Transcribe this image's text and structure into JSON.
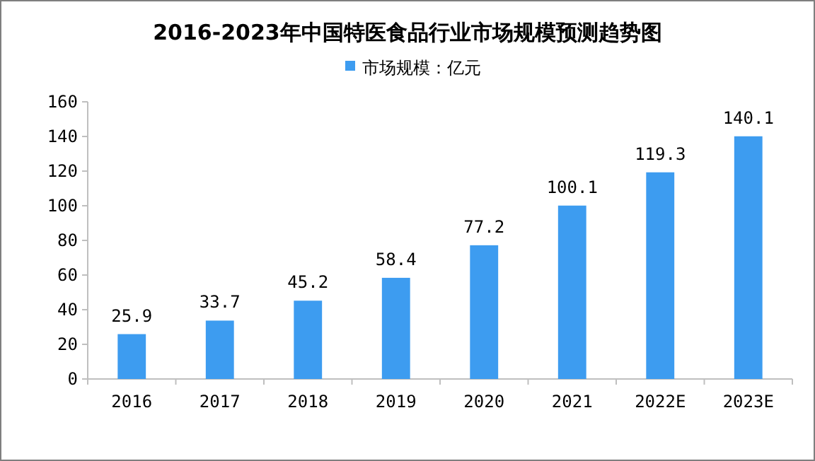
{
  "chart_data": {
    "type": "bar",
    "title": "2016-2023年中国特医食品行业市场规模预测趋势图",
    "categories": [
      "2016",
      "2017",
      "2018",
      "2019",
      "2020",
      "2021",
      "2022E",
      "2023E"
    ],
    "series": [
      {
        "name": "市场规模：亿元",
        "color": "#3d9cf0",
        "values": [
          25.9,
          33.7,
          45.2,
          58.4,
          77.2,
          100.1,
          119.3,
          140.1
        ]
      }
    ],
    "ylim": [
      0,
      160
    ],
    "yticks": [
      0,
      20,
      40,
      60,
      80,
      100,
      120,
      140,
      160
    ],
    "data_labels": true,
    "legend": "top",
    "grid": false
  }
}
